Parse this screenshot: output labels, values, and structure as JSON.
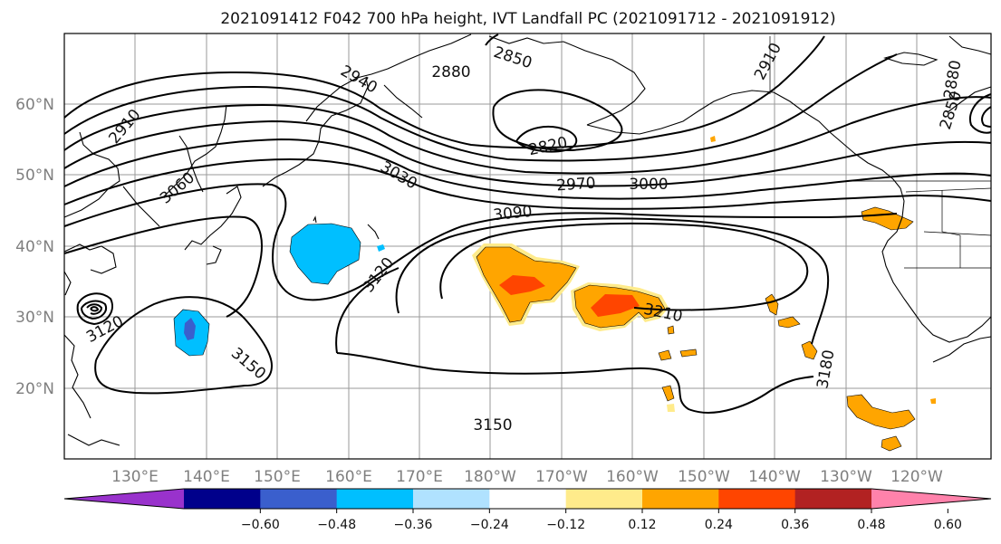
{
  "title": "2021091412 F042 700 hPa height, IVT Landfall PC (2021091712 - 2021091912)",
  "latitude_labels": [
    "60°N",
    "50°N",
    "40°N",
    "30°N",
    "20°N"
  ],
  "longitude_labels": [
    "130°E",
    "140°E",
    "150°E",
    "160°E",
    "170°E",
    "180°W",
    "170°W",
    "160°W",
    "150°W",
    "140°W",
    "130°W",
    "120°W"
  ],
  "contour_labels": [
    "2850",
    "2880",
    "2940",
    "2910",
    "2820",
    "2910",
    "2850",
    "2880",
    "3060",
    "3030",
    "2970",
    "3000",
    "3090",
    "3120",
    "3210",
    "3120",
    "3150",
    "3180",
    "3150"
  ],
  "colorbar": {
    "ticks": [
      "−0.60",
      "−0.48",
      "−0.36",
      "−0.24",
      "−0.12",
      "0.12",
      "0.24",
      "0.36",
      "0.48",
      "0.60"
    ],
    "colors": [
      "#9932cc",
      "#00008b",
      "#3a5fcd",
      "#00bfff",
      "#b0e2ff",
      "#ffffff",
      "#ffeb8b",
      "#ffa500",
      "#ff4500",
      "#b22222",
      "#ff82ab"
    ],
    "under_color": "#9932cc",
    "over_color": "#ff82ab"
  },
  "shading_colors": {
    "neg_light": "#b0e2ff",
    "neg_mid": "#00bfff",
    "neg_strong": "#3a5fcd",
    "pos_light": "#ffeb8b",
    "pos_mid": "#ffa500",
    "pos_strong": "#ff4500"
  }
}
